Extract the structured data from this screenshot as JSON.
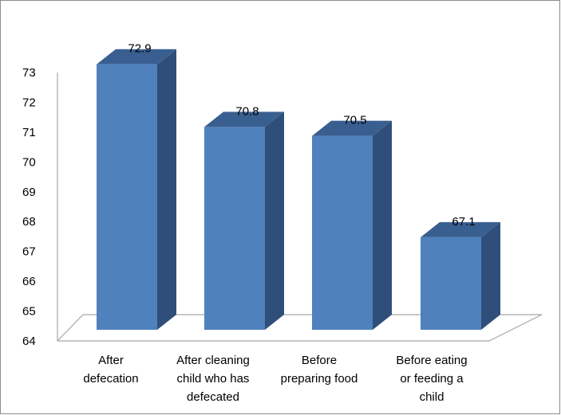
{
  "chart_data": {
    "type": "bar",
    "style": "3d-column",
    "title": "",
    "xlabel": "",
    "ylabel": "",
    "categories": [
      [
        "After",
        "defecation"
      ],
      [
        "After cleaning",
        "child who has",
        "defecated"
      ],
      [
        "Before",
        "preparing food"
      ],
      [
        "Before eating",
        "or feeding a",
        "child"
      ]
    ],
    "values": [
      72.9,
      70.8,
      70.5,
      67.1
    ],
    "data_labels": [
      "72.9",
      "70.8",
      "70.5",
      "67.1"
    ],
    "ylim": [
      64,
      73
    ],
    "yticks": [
      "64",
      "65",
      "66",
      "67",
      "68",
      "69",
      "70",
      "71",
      "72",
      "73"
    ],
    "grid": false,
    "legend": "none",
    "colors": {
      "bar_front": "#4f81bd",
      "bar_side": "#2f4f7a",
      "bar_top": "#395f90",
      "floor_line": "#a6a6a6",
      "frame": "#8c8c8c"
    }
  }
}
